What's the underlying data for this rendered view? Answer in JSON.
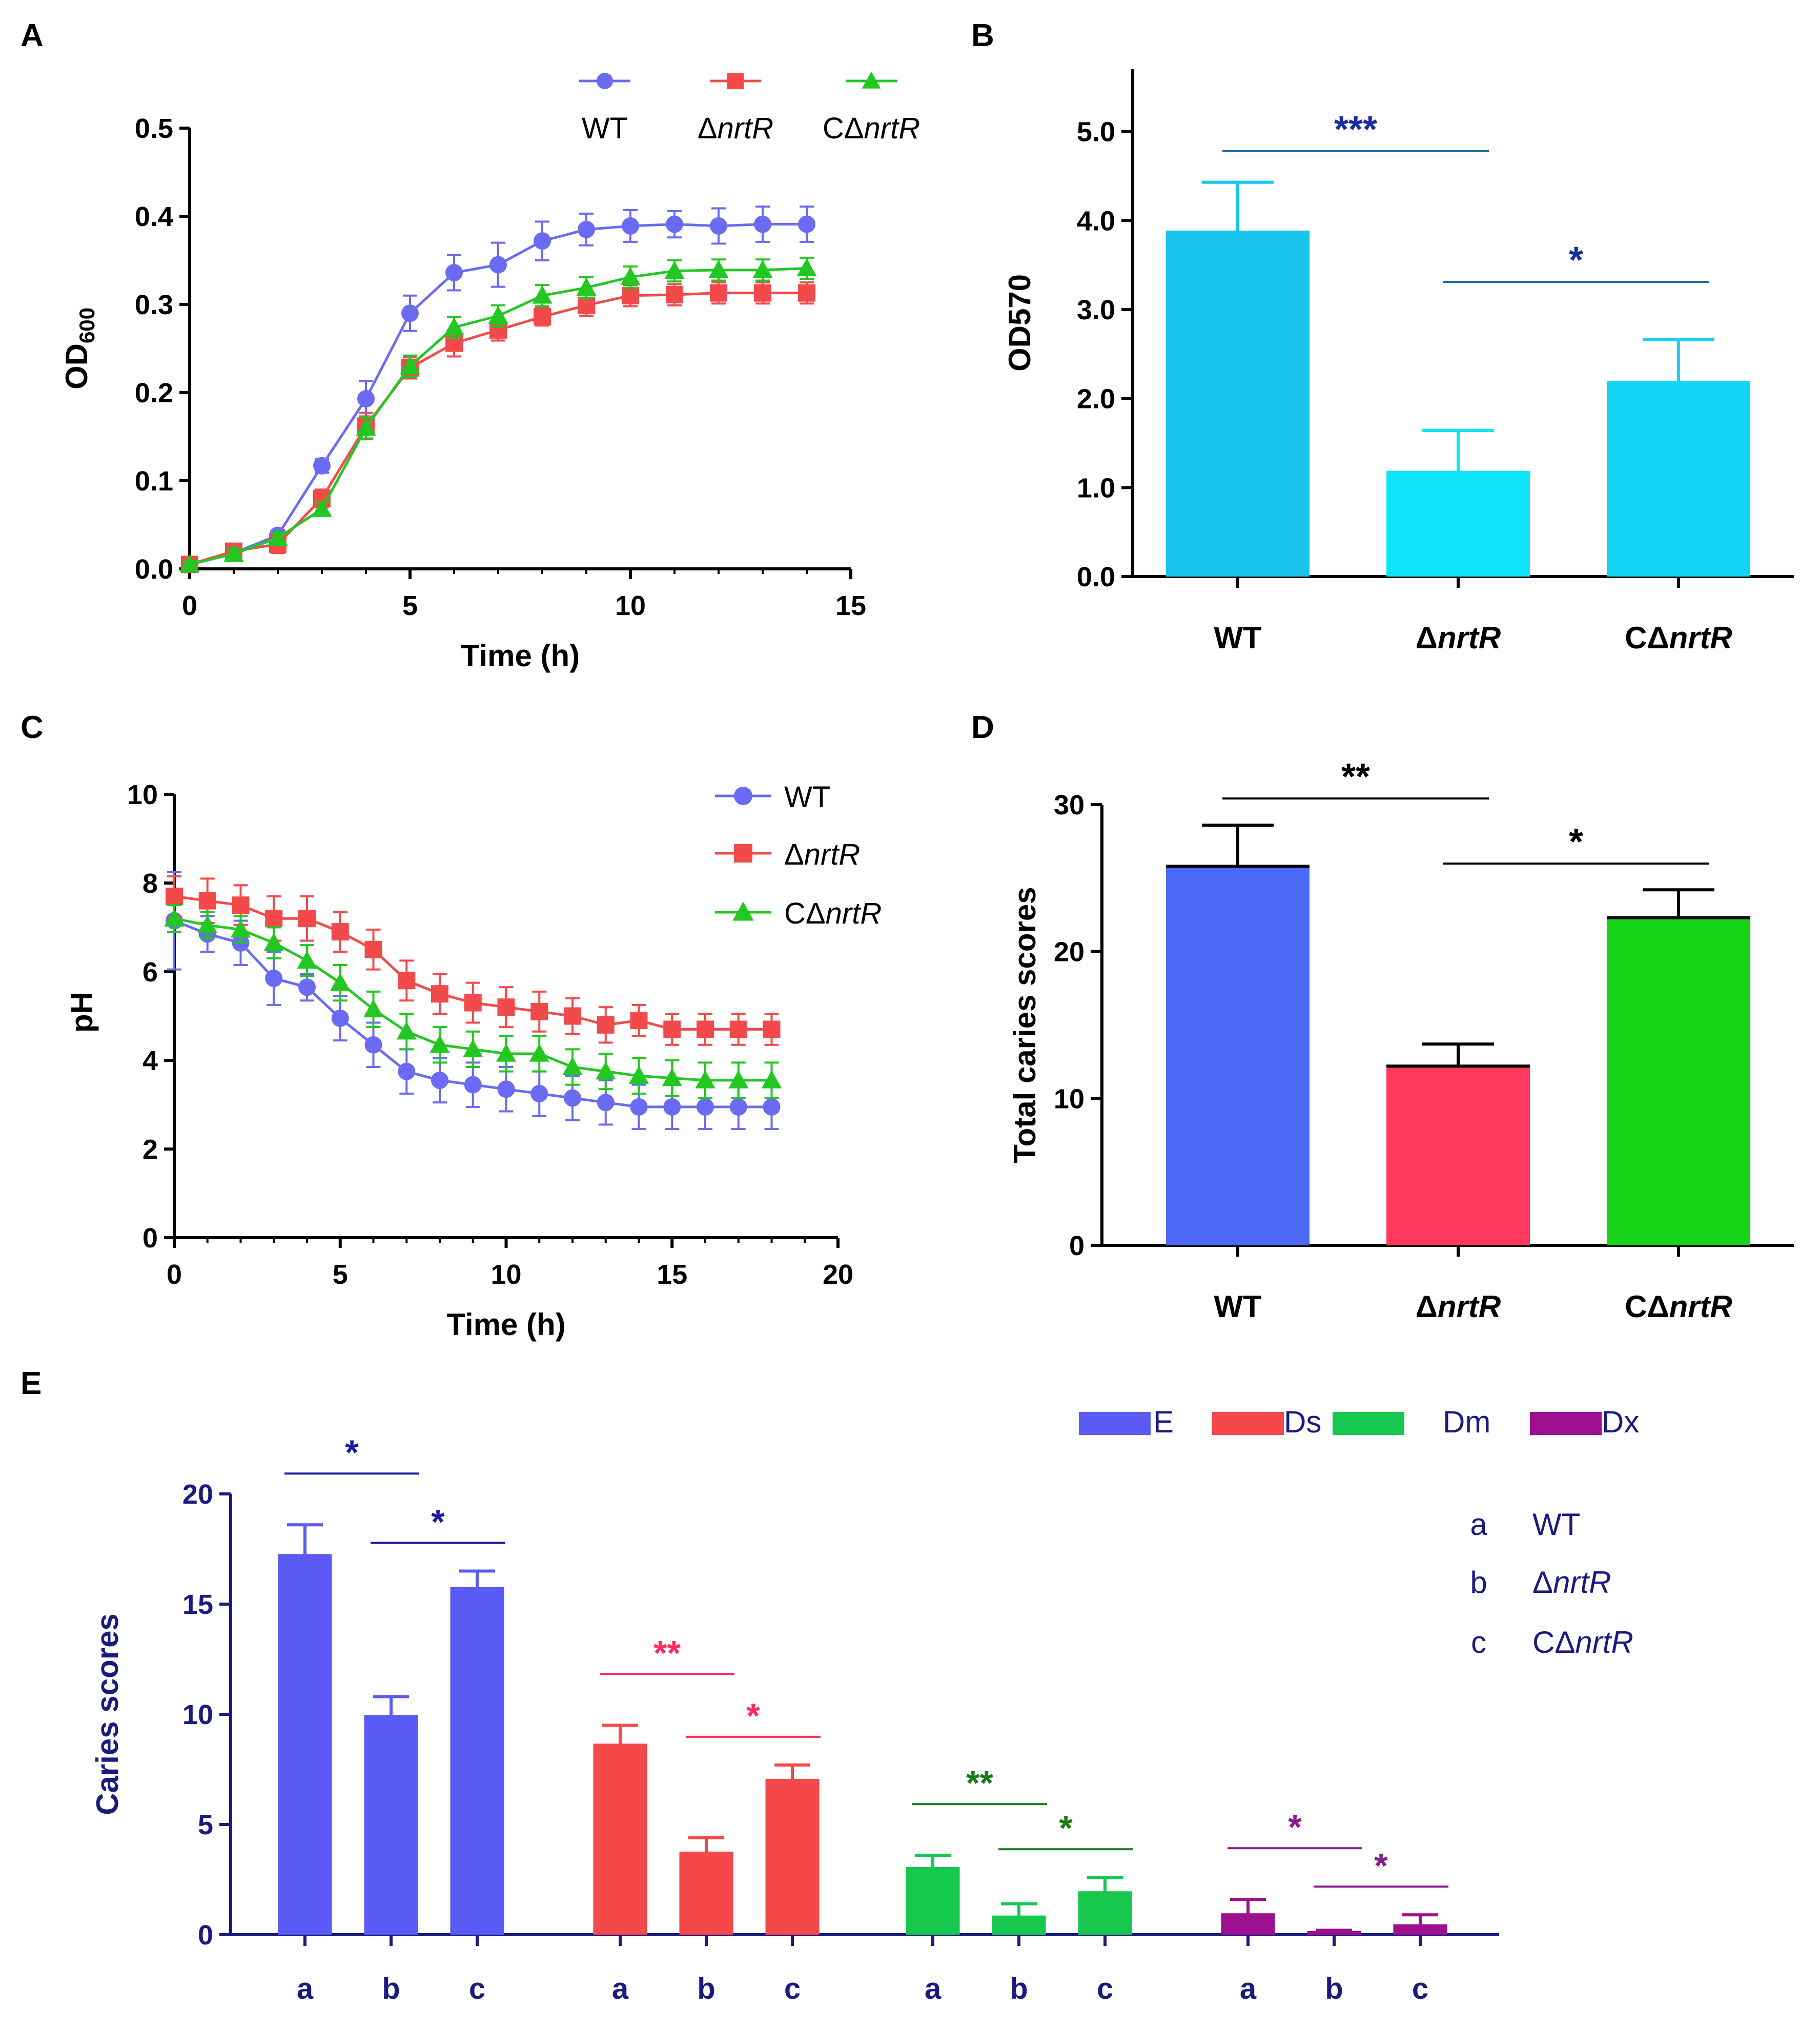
{
  "figure": {
    "panels": [
      "A",
      "B",
      "C",
      "D",
      "E"
    ]
  },
  "colors": {
    "wt_line": "#6a6af2",
    "mut_line": "#f24a4a",
    "comp_line": "#22c722",
    "bar_B_wt": "#18c4ec",
    "bar_B_mut": "#10e4f8",
    "bar_B_comp": "#12d4f4",
    "bar_D_wt": "#4a6af5",
    "bar_D_mut": "#ff3a5c",
    "bar_D_comp": "#18d418",
    "E_E": "#5a5af5",
    "E_Ds": "#f54848",
    "E_Dm": "#16c84e",
    "E_Dx": "#9c1090",
    "E_axis": "#1a1a80",
    "sig_B_top": "#1f6ea3",
    "sig_B_star_top": "#1a2ca0"
  },
  "chart_data": [
    {
      "panel": "A",
      "type": "line",
      "xlabel": "Time (h)",
      "ylabel": "OD600",
      "xlim": [
        0,
        15
      ],
      "ylim": [
        0,
        0.5
      ],
      "xticks": [
        "0",
        "5",
        "10",
        "15"
      ],
      "yticks": [
        "0.0",
        "0.1",
        "0.2",
        "0.3",
        "0.4",
        "0.5"
      ],
      "legend_position": "top-right",
      "x": [
        0,
        1,
        2,
        3,
        4,
        5,
        6,
        7,
        8,
        9,
        10,
        11,
        12,
        13,
        14
      ],
      "series": [
        {
          "name": "WT",
          "marker": "circle",
          "values": [
            0.005,
            0.018,
            0.038,
            0.117,
            0.193,
            0.29,
            0.336,
            0.345,
            0.372,
            0.385,
            0.389,
            0.391,
            0.389,
            0.391,
            0.391
          ],
          "errors": [
            0.004,
            0.006,
            0.006,
            0.008,
            0.02,
            0.02,
            0.02,
            0.025,
            0.022,
            0.018,
            0.018,
            0.015,
            0.02,
            0.02,
            0.02
          ]
        },
        {
          "name": "ΔnrtR",
          "marker": "square",
          "values": [
            0.005,
            0.02,
            0.028,
            0.08,
            0.162,
            0.228,
            0.256,
            0.271,
            0.286,
            0.299,
            0.31,
            0.311,
            0.313,
            0.313,
            0.313
          ],
          "errors": [
            0.004,
            0.006,
            0.01,
            0.01,
            0.015,
            0.012,
            0.015,
            0.012,
            0.01,
            0.012,
            0.012,
            0.012,
            0.012,
            0.012,
            0.012
          ]
        },
        {
          "name": "CΔnrtR",
          "marker": "triangle",
          "values": [
            0.005,
            0.017,
            0.035,
            0.068,
            0.16,
            0.23,
            0.274,
            0.287,
            0.31,
            0.319,
            0.331,
            0.338,
            0.339,
            0.339,
            0.341
          ],
          "errors": [
            0.004,
            0.006,
            0.006,
            0.008,
            0.012,
            0.012,
            0.012,
            0.012,
            0.012,
            0.012,
            0.012,
            0.012,
            0.012,
            0.012,
            0.012
          ]
        }
      ]
    },
    {
      "panel": "B",
      "type": "bar",
      "ylabel": "OD570",
      "ylim": [
        0,
        5.7
      ],
      "yticks": [
        "0.0",
        "1.0",
        "2.0",
        "3.0",
        "4.0",
        "5.0"
      ],
      "categories": [
        "WT",
        "ΔnrtR",
        "CΔnrtR"
      ],
      "values": [
        3.87,
        1.17,
        2.18
      ],
      "errors": [
        0.56,
        0.47,
        0.48
      ],
      "significance": [
        {
          "label": "***",
          "from": 0,
          "to": 1
        },
        {
          "label": "*",
          "from": 1,
          "to": 2
        }
      ]
    },
    {
      "panel": "C",
      "type": "line",
      "xlabel": "Time (h)",
      "ylabel": "pH",
      "xlim": [
        0,
        20
      ],
      "ylim": [
        0,
        10
      ],
      "xticks": [
        "0",
        "5",
        "10",
        "15",
        "20"
      ],
      "yticks": [
        "0",
        "2",
        "4",
        "6",
        "8",
        "10"
      ],
      "legend_position": "top-right",
      "x": [
        0,
        1,
        2,
        3,
        4,
        5,
        6,
        7,
        8,
        9,
        10,
        11,
        12,
        13,
        14,
        15,
        16,
        17,
        18
      ],
      "series": [
        {
          "name": "WT",
          "marker": "circle",
          "values": [
            7.15,
            6.85,
            6.65,
            5.85,
            5.65,
            4.95,
            4.35,
            3.75,
            3.55,
            3.45,
            3.35,
            3.25,
            3.15,
            3.05,
            2.95,
            2.95,
            2.95,
            2.95,
            2.95
          ],
          "errors": [
            1.1,
            0.4,
            0.5,
            0.6,
            0.3,
            0.5,
            0.5,
            0.5,
            0.5,
            0.5,
            0.5,
            0.5,
            0.5,
            0.5,
            0.5,
            0.5,
            0.5,
            0.5,
            0.5
          ]
        },
        {
          "name": "ΔnrtR",
          "marker": "square",
          "values": [
            7.7,
            7.6,
            7.5,
            7.2,
            7.2,
            6.9,
            6.5,
            5.8,
            5.5,
            5.3,
            5.2,
            5.1,
            5.0,
            4.8,
            4.9,
            4.7,
            4.7,
            4.7,
            4.7
          ],
          "errors": [
            0.45,
            0.5,
            0.45,
            0.5,
            0.5,
            0.45,
            0.45,
            0.45,
            0.45,
            0.45,
            0.45,
            0.45,
            0.4,
            0.4,
            0.35,
            0.35,
            0.35,
            0.35,
            0.35
          ]
        },
        {
          "name": "CΔnrtR",
          "marker": "triangle",
          "values": [
            7.2,
            7.05,
            6.95,
            6.65,
            6.25,
            5.75,
            5.15,
            4.65,
            4.35,
            4.25,
            4.15,
            4.15,
            3.85,
            3.75,
            3.65,
            3.6,
            3.55,
            3.55,
            3.55
          ],
          "errors": [
            0.3,
            0.3,
            0.3,
            0.35,
            0.35,
            0.4,
            0.4,
            0.4,
            0.4,
            0.4,
            0.4,
            0.4,
            0.4,
            0.4,
            0.4,
            0.4,
            0.4,
            0.4,
            0.4
          ]
        }
      ]
    },
    {
      "panel": "D",
      "type": "bar",
      "ylabel": "Total caries scores",
      "ylim": [
        0,
        30
      ],
      "yticks": [
        "0",
        "10",
        "20",
        "30"
      ],
      "categories": [
        "WT",
        "ΔnrtR",
        "CΔnrtR"
      ],
      "values": [
        25.8,
        12.2,
        22.3
      ],
      "errors": [
        2.8,
        1.5,
        1.9
      ],
      "significance": [
        {
          "label": "**",
          "from": 0,
          "to": 1
        },
        {
          "label": "*",
          "from": 1,
          "to": 2
        }
      ]
    },
    {
      "panel": "E",
      "type": "bar",
      "ylabel": "Caries scores",
      "ylim": [
        0,
        20
      ],
      "yticks": [
        "0",
        "5",
        "10",
        "15",
        "20"
      ],
      "categories": [
        "a",
        "b",
        "c"
      ],
      "category_key": [
        {
          "letter": "a",
          "strain": "WT"
        },
        {
          "letter": "b",
          "strain": "ΔnrtR"
        },
        {
          "letter": "c",
          "strain": "CΔnrtR"
        }
      ],
      "legend_position": "top-right",
      "series": [
        {
          "name": "E",
          "values": [
            17.2,
            9.9,
            15.7
          ],
          "errors": [
            1.4,
            0.9,
            0.8
          ],
          "significance": [
            {
              "label": "*",
              "from": 0,
              "to": 1
            },
            {
              "label": "*",
              "from": 1,
              "to": 2
            }
          ]
        },
        {
          "name": "Ds",
          "values": [
            8.6,
            3.7,
            7.0
          ],
          "errors": [
            0.9,
            0.7,
            0.7
          ],
          "significance": [
            {
              "label": "**",
              "from": 0,
              "to": 1
            },
            {
              "label": "*",
              "from": 1,
              "to": 2
            }
          ]
        },
        {
          "name": "Dm",
          "values": [
            3.0,
            0.8,
            1.9
          ],
          "errors": [
            0.6,
            0.6,
            0.7
          ],
          "significance": [
            {
              "label": "**",
              "from": 0,
              "to": 1
            },
            {
              "label": "*",
              "from": 1,
              "to": 2
            }
          ]
        },
        {
          "name": "Dx",
          "values": [
            0.9,
            0.1,
            0.4
          ],
          "errors": [
            0.7,
            0.1,
            0.5
          ],
          "significance": [
            {
              "label": "*",
              "from": 0,
              "to": 1
            },
            {
              "label": "*",
              "from": 1,
              "to": 2
            }
          ]
        }
      ]
    }
  ]
}
